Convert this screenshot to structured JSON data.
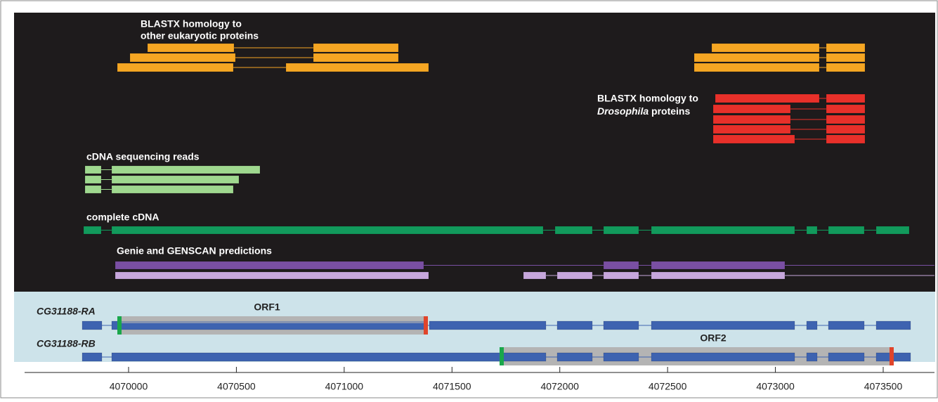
{
  "tracks": {
    "blastx_other": [
      "BLASTX homology to",
      "other eukaryotic proteins"
    ],
    "blastx_dros": {
      "line1": "BLASTX homology to",
      "italic": "Drosophila",
      "rest": " proteins"
    },
    "cdna_reads": "cDNA sequencing reads",
    "complete_cdna": "complete cDNA",
    "predictions": "Genie and GENSCAN predictions"
  },
  "transcripts": [
    {
      "name": "CG31188-RA",
      "orf": "ORF1"
    },
    {
      "name": "CG31188-RB",
      "orf": "ORF2"
    }
  ],
  "axis": {
    "ticks": [
      4070000,
      4070500,
      4071000,
      4071500,
      4072000,
      4072500,
      4073000,
      4073500
    ]
  }
}
